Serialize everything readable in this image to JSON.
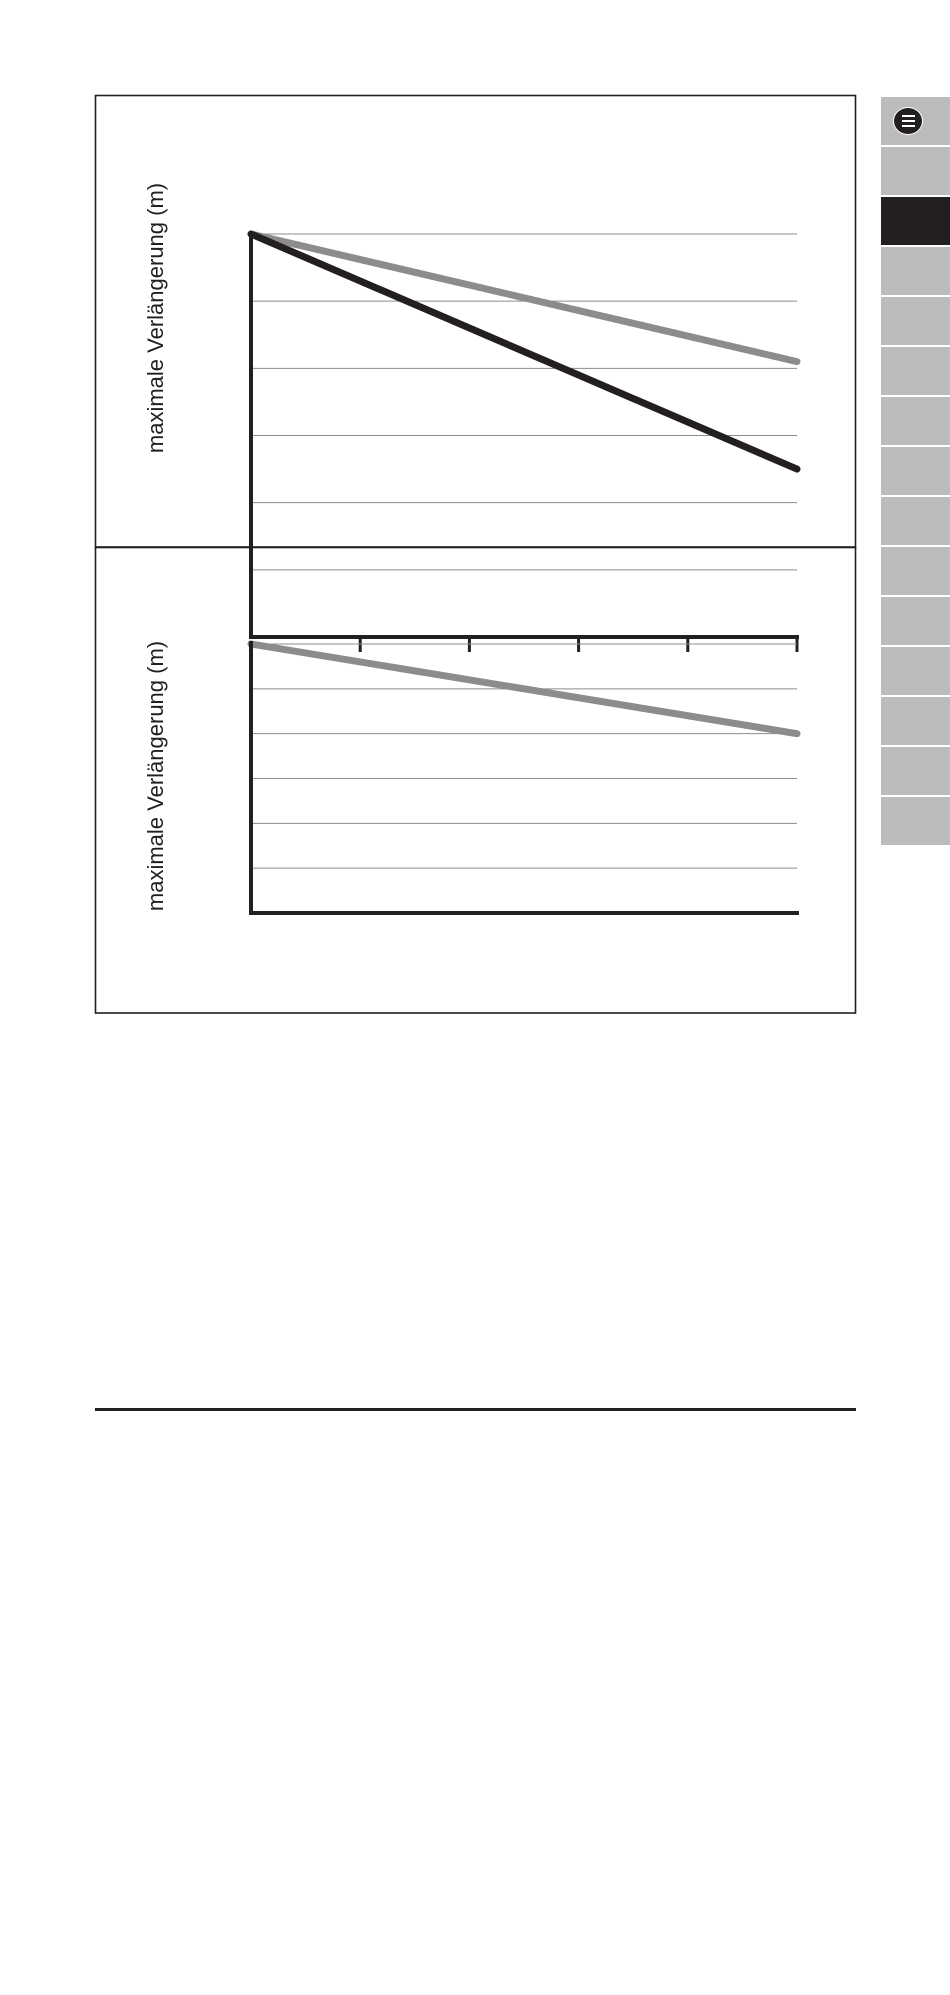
{
  "chart_data": [
    {
      "type": "line",
      "ylabel": "maximale Verlängerung (m)",
      "xlabel": "",
      "x": [
        0,
        5
      ],
      "xlim": [
        0,
        5
      ],
      "ylim": [
        0,
        6
      ],
      "xticks": [
        1,
        2,
        3,
        4,
        5
      ],
      "grid": true,
      "series": [
        {
          "values": [
            6,
            4.1
          ],
          "color": "#8c8c8c"
        },
        {
          "values": [
            6,
            2.5
          ],
          "color": "#231f20"
        }
      ]
    },
    {
      "type": "line",
      "ylabel": "maximale Verlängerung (m)",
      "xlabel": "",
      "x": [
        0,
        5
      ],
      "xlim": [
        0,
        5
      ],
      "ylim": [
        0,
        6
      ],
      "xticks": [],
      "grid": true,
      "series": [
        {
          "values": [
            6,
            4.0
          ],
          "color": "#8c8c8c"
        }
      ]
    }
  ],
  "sidebar": {
    "tab_count": 15,
    "active_index": 2,
    "menu_icon": "hamburger-menu-icon",
    "active_color": "#231f20",
    "inactive_color": "#bcbcbc"
  }
}
